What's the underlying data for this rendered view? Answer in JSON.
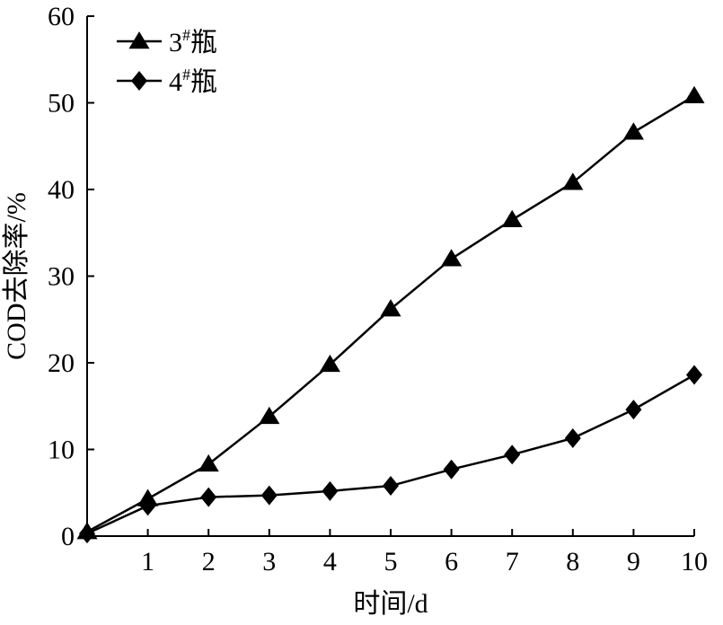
{
  "chart_data": {
    "type": "line",
    "xlabel": "时间/d",
    "ylabel": "COD去除率/%",
    "xlim": [
      0,
      10
    ],
    "ylim": [
      0,
      60
    ],
    "x_ticks": [
      1,
      2,
      3,
      4,
      5,
      6,
      7,
      8,
      9,
      10
    ],
    "y_ticks": [
      0,
      10,
      20,
      30,
      40,
      50,
      60
    ],
    "grid": false,
    "legend_position": "top-left",
    "x": [
      0,
      1,
      2,
      3,
      4,
      5,
      6,
      7,
      8,
      9,
      10
    ],
    "series": [
      {
        "name": "3#瓶",
        "name_main": "3",
        "name_sup": "#",
        "name_tail": "瓶",
        "marker": "triangle",
        "color": "#000000",
        "values": [
          0.5,
          4.3,
          8.3,
          13.8,
          19.8,
          26.2,
          32.0,
          36.5,
          40.8,
          46.6,
          50.8
        ]
      },
      {
        "name": "4#瓶",
        "name_main": "4",
        "name_sup": "#",
        "name_tail": "瓶",
        "marker": "diamond",
        "color": "#000000",
        "values": [
          0.3,
          3.5,
          4.5,
          4.7,
          5.2,
          5.8,
          7.7,
          9.4,
          11.3,
          14.6,
          18.6
        ]
      }
    ]
  }
}
